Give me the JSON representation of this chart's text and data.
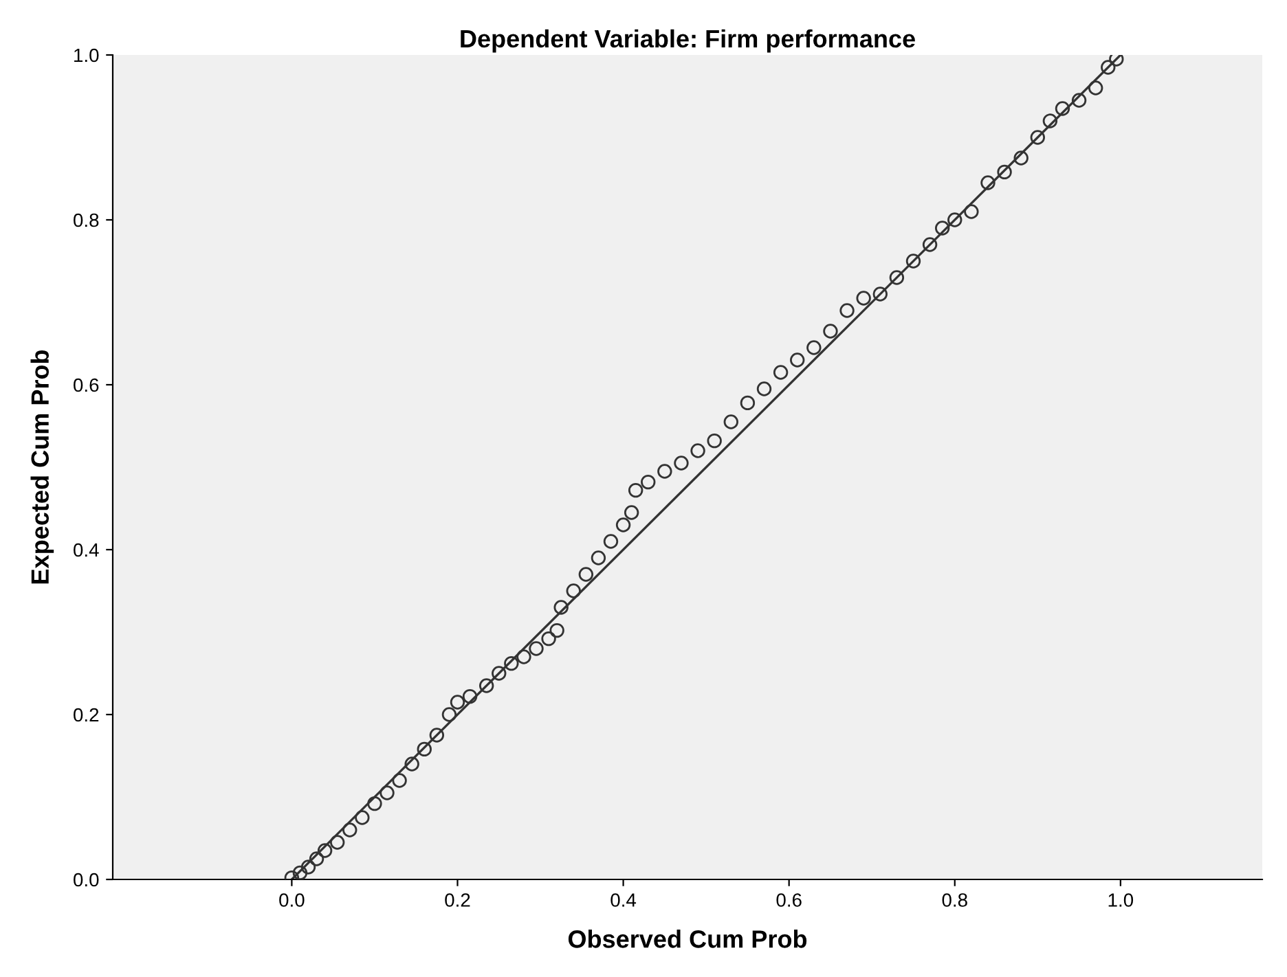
{
  "chart_data": {
    "type": "scatter",
    "title": "Dependent Variable: Firm performance",
    "xlabel": "Observed Cum Prob",
    "ylabel": "Expected Cum Prob",
    "xlim": [
      -0.216,
      1.171
    ],
    "ylim": [
      0,
      1
    ],
    "xticks": [
      {
        "value": 0,
        "label": "0.0"
      },
      {
        "value": 0.2,
        "label": "0.2"
      },
      {
        "value": 0.4,
        "label": "0.4"
      },
      {
        "value": 0.6,
        "label": "0.6"
      },
      {
        "value": 0.8,
        "label": "0.8"
      },
      {
        "value": 1,
        "label": "1.0"
      }
    ],
    "yticks": [
      {
        "value": 0,
        "label": "0.0"
      },
      {
        "value": 0.2,
        "label": "0.2"
      },
      {
        "value": 0.4,
        "label": "0.4"
      },
      {
        "value": 0.6,
        "label": "0.6"
      },
      {
        "value": 0.8,
        "label": "0.8"
      },
      {
        "value": 1,
        "label": "1.0"
      }
    ],
    "grid": false,
    "series": [
      {
        "marker": "circle",
        "color": "#333333",
        "x": [
          0.0,
          0.01,
          0.02,
          0.03,
          0.04,
          0.055,
          0.07,
          0.085,
          0.1,
          0.115,
          0.13,
          0.145,
          0.16,
          0.175,
          0.19,
          0.2,
          0.215,
          0.235,
          0.25,
          0.265,
          0.28,
          0.295,
          0.31,
          0.32,
          0.325,
          0.34,
          0.355,
          0.37,
          0.385,
          0.4,
          0.41,
          0.415,
          0.43,
          0.45,
          0.47,
          0.49,
          0.51,
          0.53,
          0.55,
          0.57,
          0.59,
          0.61,
          0.63,
          0.65,
          0.67,
          0.69,
          0.71,
          0.73,
          0.75,
          0.77,
          0.785,
          0.8,
          0.82,
          0.84,
          0.86,
          0.88,
          0.9,
          0.915,
          0.93,
          0.95,
          0.97,
          0.985,
          0.995
        ],
        "values": [
          0.002,
          0.008,
          0.015,
          0.025,
          0.035,
          0.045,
          0.06,
          0.075,
          0.092,
          0.105,
          0.12,
          0.14,
          0.158,
          0.175,
          0.2,
          0.215,
          0.222,
          0.235,
          0.25,
          0.262,
          0.27,
          0.28,
          0.292,
          0.302,
          0.33,
          0.35,
          0.37,
          0.39,
          0.41,
          0.43,
          0.445,
          0.472,
          0.482,
          0.495,
          0.505,
          0.52,
          0.532,
          0.555,
          0.578,
          0.595,
          0.615,
          0.63,
          0.645,
          0.665,
          0.69,
          0.705,
          0.71,
          0.73,
          0.75,
          0.77,
          0.79,
          0.8,
          0.81,
          0.845,
          0.858,
          0.875,
          0.9,
          0.92,
          0.935,
          0.945,
          0.96,
          0.985,
          0.995
        ]
      },
      {
        "type": "line",
        "color": "#333333",
        "x": [
          0,
          1
        ],
        "values": [
          0,
          1
        ]
      }
    ]
  }
}
